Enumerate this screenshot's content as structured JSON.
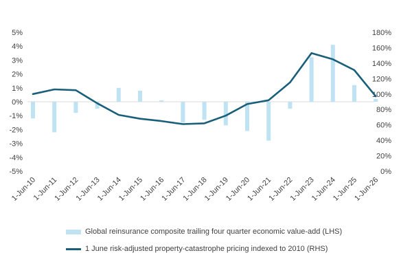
{
  "chart_data": {
    "type": "bar+line",
    "categories": [
      "1-Jun-10",
      "1-Jun-11",
      "1-Jun-12",
      "1-Jun-13",
      "1-Jun-14",
      "1-Jun-15",
      "1-Jun-16",
      "1-Jun-17",
      "1-Jun-18",
      "1-Jun-19",
      "1-Jun-20",
      "1-Jun-21",
      "1-Jun-22",
      "1-Jun-23",
      "1-Jun-24",
      "1-Jun-25",
      "1-Jun-26"
    ],
    "series": [
      {
        "name": "Global reinsurance composite trailing four quarter economic value-add (LHS)",
        "type": "bar",
        "axis": "left",
        "color": "#bfe3f3",
        "values": [
          -1.2,
          -2.2,
          -0.8,
          -0.5,
          1.0,
          0.8,
          0.1,
          -1.5,
          -1.3,
          -1.7,
          -2.1,
          -2.8,
          -0.5,
          3.2,
          4.1,
          1.2,
          0.2
        ]
      },
      {
        "name": "1 June risk-adjusted property-catastrophe pricing indexed to 2010 (RHS)",
        "type": "line",
        "axis": "right",
        "color": "#1a5f7a",
        "values": [
          100,
          106,
          105,
          88,
          73,
          68,
          65,
          61,
          62,
          72,
          87,
          92,
          115,
          153,
          145,
          131,
          97
        ]
      }
    ],
    "left_axis": {
      "ylim": [
        -5,
        5
      ],
      "ticks": [
        "5%",
        "4%",
        "3%",
        "2%",
        "1%",
        "0%",
        "-1%",
        "-2%",
        "-3%",
        "-4%",
        "-5%"
      ]
    },
    "right_axis": {
      "ylim": [
        0,
        180
      ],
      "ticks": [
        "180%",
        "160%",
        "140%",
        "120%",
        "100%",
        "80%",
        "60%",
        "40%",
        "20%",
        "0%"
      ]
    },
    "legend_position": "bottom",
    "grid": false
  }
}
